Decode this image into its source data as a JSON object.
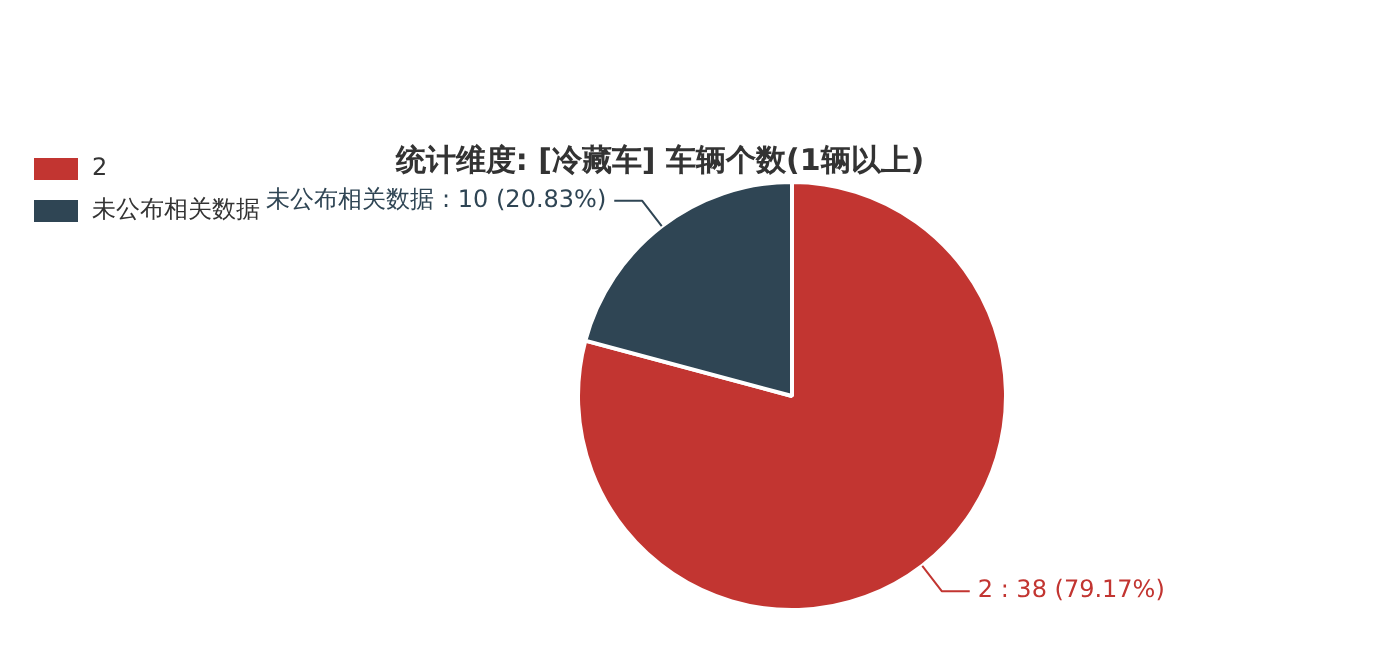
{
  "chart_data": {
    "type": "pie",
    "title": "统计维度: [冷藏车] 车辆个数(1辆以上)",
    "categories": [
      "2",
      "未公布相关数据"
    ],
    "values": [
      38,
      10
    ],
    "colors": [
      "#c23531",
      "#2f4554"
    ],
    "value_labels": [
      "2 : 38 (79.17%)",
      "未公布相关数据 : 10 (20.83%)"
    ],
    "legend": "top left"
  }
}
